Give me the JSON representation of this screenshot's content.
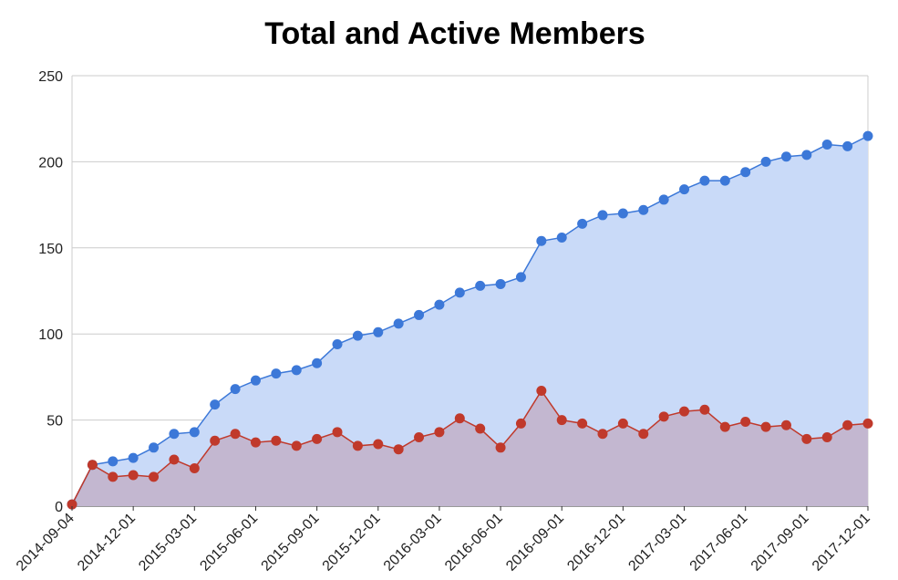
{
  "chart_data": {
    "type": "area",
    "title": "Total and Active Members",
    "xlabel": "",
    "ylabel": "",
    "ylim": [
      0,
      250
    ],
    "y_ticks": [
      0,
      50,
      100,
      150,
      200,
      250
    ],
    "x_ticks": [
      "2014-09-04",
      "2014-12-01",
      "2015-03-01",
      "2015-06-01",
      "2015-09-01",
      "2015-12-01",
      "2016-03-01",
      "2016-06-01",
      "2016-09-01",
      "2016-12-01",
      "2017-03-01",
      "2017-06-01",
      "2017-09-01",
      "2017-12-01"
    ],
    "grid": true,
    "legend": "none",
    "series": [
      {
        "color": "#3c78d8",
        "fill": "#c9daf8",
        "values": [
          1,
          24,
          26,
          28,
          34,
          42,
          43,
          59,
          68,
          73,
          77,
          79,
          83,
          94,
          99,
          101,
          106,
          111,
          117,
          124,
          128,
          129,
          133,
          154,
          156,
          164,
          169,
          170,
          172,
          178,
          184,
          189,
          189,
          194,
          200,
          203,
          204,
          210,
          209,
          215
        ]
      },
      {
        "color": "#c0392b",
        "fill": "#c2b0c9",
        "values": [
          1,
          24,
          17,
          18,
          17,
          27,
          22,
          38,
          42,
          37,
          38,
          35,
          39,
          43,
          35,
          36,
          33,
          40,
          43,
          51,
          45,
          34,
          48,
          67,
          50,
          48,
          42,
          48,
          42,
          52,
          55,
          56,
          46,
          49,
          46,
          47,
          39,
          40,
          47,
          48
        ]
      }
    ]
  }
}
